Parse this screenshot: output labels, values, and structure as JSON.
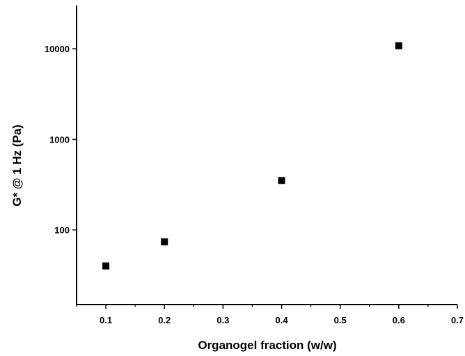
{
  "chart_data": {
    "type": "scatter",
    "title": "",
    "xlabel": "Organogel fraction (w/w)",
    "ylabel": "G* @ 1 Hz (Pa)",
    "xlim": [
      0.05,
      0.7
    ],
    "ylim": [
      15,
      30000
    ],
    "yscale": "log",
    "grid": false,
    "legend": "none",
    "x_ticks": [
      "0.1",
      "0.2",
      "0.3",
      "0.4",
      "0.5",
      "0.6",
      "0.7"
    ],
    "y_ticks": [
      "100",
      "1000",
      "10000"
    ],
    "series": [
      {
        "marker": "square",
        "color": "#000000",
        "x": [
          0.1,
          0.2,
          0.4,
          0.6
        ],
        "y": [
          40,
          74,
          350,
          10800
        ]
      }
    ]
  }
}
